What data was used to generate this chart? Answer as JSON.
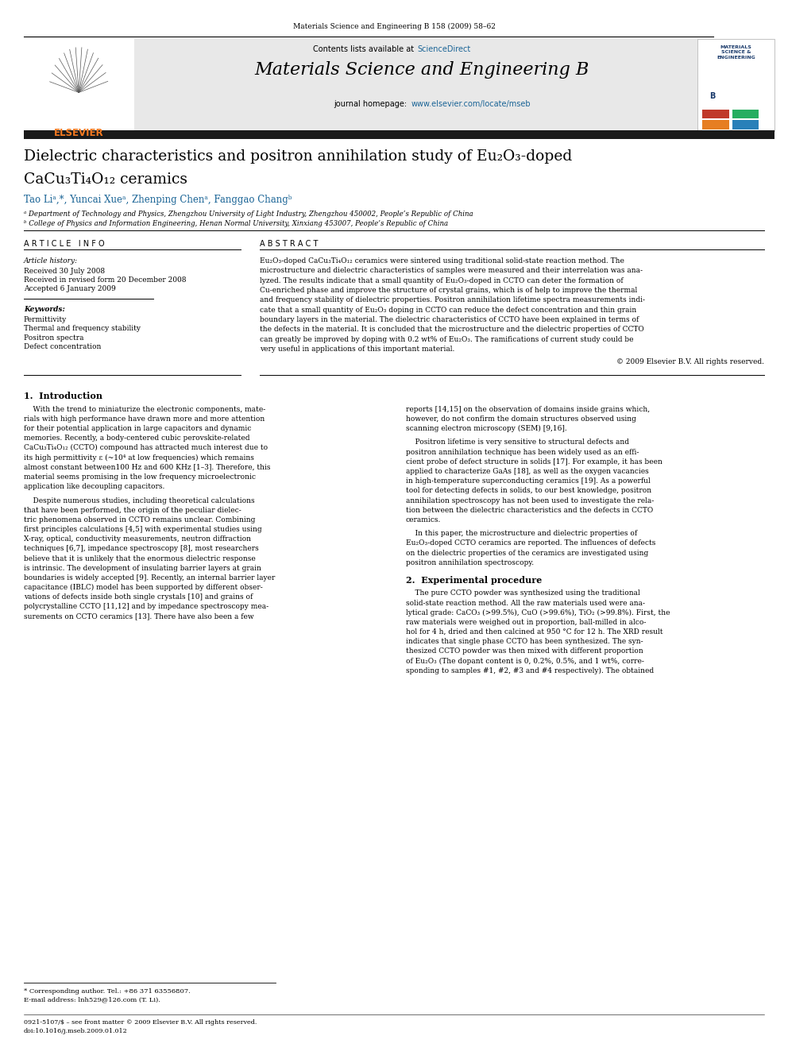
{
  "page_width": 9.92,
  "page_height": 13.23,
  "bg_color": "#ffffff",
  "header_journal": "Materials Science and Engineering B 158 (2009) 58–62",
  "journal_name": "Materials Science and Engineering B",
  "sciencedirect_color": "#1a6496",
  "homepage_color": "#1a6496",
  "header_bg": "#e8e8e8",
  "title_line1": "Dielectric characteristics and positron annihilation study of Eu₂O₃-doped",
  "title_line2": "CaCu₃Ti₄O₁₂ ceramics",
  "authors": "Tao Liᵃ,*, Yuncai Xueᵃ, Zhenping Chenᵃ, Fanggao Changᵇ",
  "affil_a": "ᵃ Department of Technology and Physics, Zhengzhou University of Light Industry, Zhengzhou 450002, People’s Republic of China",
  "affil_b": "ᵇ College of Physics and Information Engineering, Henan Normal University, Xinxiang 453007, People’s Republic of China",
  "article_info_label": "A R T I C L E   I N F O",
  "abstract_label": "A B S T R A C T",
  "article_history_label": "Article history:",
  "received1": "Received 30 July 2008",
  "received2": "Received in revised form 20 December 2008",
  "accepted": "Accepted 6 January 2009",
  "keywords_label": "Keywords:",
  "kw1": "Permittivity",
  "kw2": "Thermal and frequency stability",
  "kw3": "Positron spectra",
  "kw4": "Defect concentration",
  "copyright": "© 2009 Elsevier B.V. All rights reserved.",
  "section1_title": "1.  Introduction",
  "section2_title": "2.  Experimental procedure",
  "footnote_star": "* Corresponding author. Tel.: +86 371 63556807.",
  "footnote_email": "E-mail address: lnh529@126.com (T. Li).",
  "footer_issn": "0921-5107/$ – see front matter © 2009 Elsevier B.V. All rights reserved.",
  "footer_doi": "doi:10.1016/j.mseb.2009.01.012",
  "elsevier_orange": "#f47920",
  "author_color": "#1a6496",
  "abstract_lines": [
    "Eu₂O₃-doped CaCu₃Ti₄O₁₂ ceramics were sintered using traditional solid-state reaction method. The",
    "microstructure and dielectric characteristics of samples were measured and their interrelation was ana-",
    "lyzed. The results indicate that a small quantity of Eu₂O₃-doped in CCTO can deter the formation of",
    "Cu-enriched phase and improve the structure of crystal grains, which is of help to improve the thermal",
    "and frequency stability of dielectric properties. Positron annihilation lifetime spectra measurements indi-",
    "cate that a small quantity of Eu₂O₃ doping in CCTO can reduce the defect concentration and thin grain",
    "boundary layers in the material. The dielectric characteristics of CCTO have been explained in terms of",
    "the defects in the material. It is concluded that the microstructure and the dielectric properties of CCTO",
    "can greatly be improved by doping with 0.2 wt% of Eu₂O₃. The ramifications of current study could be",
    "very useful in applications of this important material."
  ],
  "intro_col1_lines": [
    "    With the trend to miniaturize the electronic components, mate-",
    "rials with high performance have drawn more and more attention",
    "for their potential application in large capacitors and dynamic",
    "memories. Recently, a body-centered cubic perovskite-related",
    "CaCu₃Ti₄O₁₂ (CCTO) compound has attracted much interest due to",
    "its high permittivity ε (~10⁴ at low frequencies) which remains",
    "almost constant between100 Hz and 600 KHz [1–3]. Therefore, this",
    "material seems promising in the low frequency microelectronic",
    "application like decoupling capacitors."
  ],
  "intro_col1_p2_lines": [
    "    Despite numerous studies, including theoretical calculations",
    "that have been performed, the origin of the peculiar dielec-",
    "tric phenomena observed in CCTO remains unclear. Combining",
    "first principles calculations [4,5] with experimental studies using",
    "X-ray, optical, conductivity measurements, neutron diffraction",
    "techniques [6,7], impedance spectroscopy [8], most researchers",
    "believe that it is unlikely that the enormous dielectric response",
    "is intrinsic. The development of insulating barrier layers at grain",
    "boundaries is widely accepted [9]. Recently, an internal barrier layer",
    "capacitance (IBLC) model has been supported by different obser-",
    "vations of defects inside both single crystals [10] and grains of",
    "polycrystalline CCTO [11,12] and by impedance spectroscopy mea-",
    "surements on CCTO ceramics [13]. There have also been a few"
  ],
  "intro_col2_p1_lines": [
    "reports [14,15] on the observation of domains inside grains which,",
    "however, do not confirm the domain structures observed using",
    "scanning electron microscopy (SEM) [9,16]."
  ],
  "intro_col2_p2_lines": [
    "    Positron lifetime is very sensitive to structural defects and",
    "positron annihilation technique has been widely used as an effi-",
    "cient probe of defect structure in solids [17]. For example, it has been",
    "applied to characterize GaAs [18], as well as the oxygen vacancies",
    "in high-temperature superconducting ceramics [19]. As a powerful",
    "tool for detecting defects in solids, to our best knowledge, positron",
    "annihilation spectroscopy has not been used to investigate the rela-",
    "tion between the dielectric characteristics and the defects in CCTO",
    "ceramics."
  ],
  "intro_col2_p3_lines": [
    "    In this paper, the microstructure and dielectric properties of",
    "Eu₂O₃-doped CCTO ceramics are reported. The influences of defects",
    "on the dielectric properties of the ceramics are investigated using",
    "positron annihilation spectroscopy."
  ],
  "exp_col2_lines": [
    "    The pure CCTO powder was synthesized using the traditional",
    "solid-state reaction method. All the raw materials used were ana-",
    "lytical grade: CaCO₃ (>99.5%), CuO (>99.6%), TiO₂ (>99.8%). First, the",
    "raw materials were weighed out in proportion, ball-milled in alco-",
    "hol for 4 h, dried and then calcined at 950 °C for 12 h. The XRD result",
    "indicates that single phase CCTO has been synthesized. The syn-",
    "thesized CCTO powder was then mixed with different proportion",
    "of Eu₂O₃ (The dopant content is 0, 0.2%, 0.5%, and 1 wt%, corre-",
    "sponding to samples #1, #2, #3 and #4 respectively). The obtained"
  ]
}
